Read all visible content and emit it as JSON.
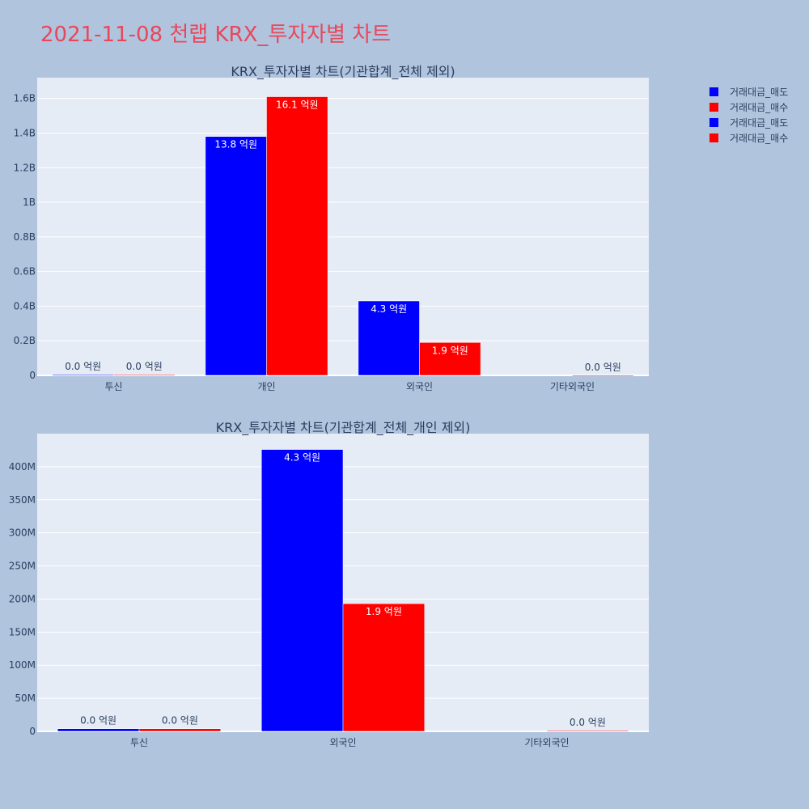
{
  "title": "2021-11-08 천랩 KRX_투자자별 차트",
  "legend": [
    {
      "name": "거래대금_매도",
      "color": "#0000ff"
    },
    {
      "name": "거래대금_매수",
      "color": "#ff0000"
    },
    {
      "name": "거래대금_매도",
      "color": "#0000ff"
    },
    {
      "name": "거래대금_매수",
      "color": "#ff0000"
    }
  ],
  "chart_data": [
    {
      "type": "bar",
      "title": "KRX_투자자별 차트(기관합계_전체 제외)",
      "categories": [
        "투신",
        "개인",
        "외국인",
        "기타외국인"
      ],
      "ylim": [
        0,
        1720000000
      ],
      "yticks": [
        0,
        200000000,
        400000000,
        600000000,
        800000000,
        1000000000,
        1200000000,
        1400000000,
        1600000000
      ],
      "ytick_labels": [
        "0",
        "0.2B",
        "0.4B",
        "0.6B",
        "0.8B",
        "1B",
        "1.2B",
        "1.4B",
        "1.6B"
      ],
      "series": [
        {
          "name": "거래대금_매도",
          "color": "#0000ff",
          "values": [
            4000000,
            1380000000,
            430000000,
            0
          ],
          "labels": [
            "0.0 억원",
            "13.8 억원",
            "4.3 억원",
            ""
          ]
        },
        {
          "name": "거래대금_매수",
          "color": "#ff0000",
          "values": [
            4000000,
            1610000000,
            190000000,
            1000000
          ],
          "labels": [
            "0.0 억원",
            "16.1 억원",
            "1.9 억원",
            "0.0 억원"
          ]
        }
      ]
    },
    {
      "type": "bar",
      "title": "KRX_투자자별 차트(기관합계_전체_개인 제외)",
      "categories": [
        "투신",
        "외국인",
        "기타외국인"
      ],
      "ylim": [
        0,
        450000000
      ],
      "yticks": [
        0,
        50000000,
        100000000,
        150000000,
        200000000,
        250000000,
        300000000,
        350000000,
        400000000
      ],
      "ytick_labels": [
        "0",
        "50M",
        "100M",
        "150M",
        "200M",
        "250M",
        "300M",
        "350M",
        "400M"
      ],
      "series": [
        {
          "name": "거래대금_매도",
          "color": "#0000ff",
          "values": [
            4000000,
            426000000,
            0
          ],
          "labels": [
            "0.0 억원",
            "4.3 억원",
            ""
          ]
        },
        {
          "name": "거래대금_매수",
          "color": "#ff0000",
          "values": [
            4000000,
            193000000,
            1000000
          ],
          "labels": [
            "0.0 억원",
            "1.9 억원",
            "0.0 억원"
          ]
        }
      ]
    }
  ]
}
